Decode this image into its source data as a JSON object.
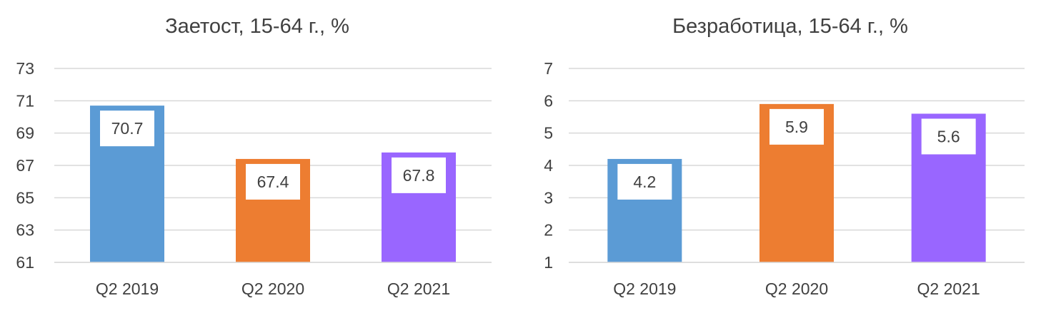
{
  "chart_data": [
    {
      "type": "bar",
      "title": "Заетост, 15-64 г., %",
      "categories": [
        "Q2 2019",
        "Q2 2020",
        "Q2 2021"
      ],
      "values": [
        70.7,
        67.4,
        67.8
      ],
      "data_labels": [
        "70.7",
        "67.4",
        "67.8"
      ],
      "colors": [
        "#5b9bd5",
        "#ed7d31",
        "#9966ff"
      ],
      "ylim": [
        61,
        73
      ],
      "yticks": [
        61,
        63,
        65,
        67,
        69,
        71,
        73
      ],
      "grid": true,
      "xlabel": "",
      "ylabel": ""
    },
    {
      "type": "bar",
      "title": "Безработица, 15-64 г., %",
      "categories": [
        "Q2 2019",
        "Q2 2020",
        "Q2 2021"
      ],
      "values": [
        4.2,
        5.9,
        5.6
      ],
      "data_labels": [
        "4.2",
        "5.9",
        "5.6"
      ],
      "colors": [
        "#5b9bd5",
        "#ed7d31",
        "#9966ff"
      ],
      "ylim": [
        1,
        7
      ],
      "yticks": [
        1,
        2,
        3,
        4,
        5,
        6,
        7
      ],
      "grid": true,
      "xlabel": "",
      "ylabel": ""
    }
  ]
}
